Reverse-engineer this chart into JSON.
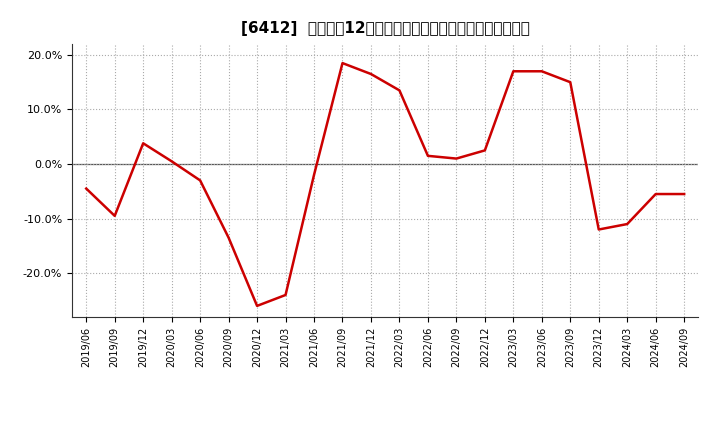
{
  "title": "[6412]  売上高の12か月移動合計の対前年同期増減率の推移",
  "line_color": "#cc0000",
  "background_color": "#ffffff",
  "grid_color": "#aaaaaa",
  "x_labels": [
    "2019/06",
    "2019/09",
    "2019/12",
    "2020/03",
    "2020/06",
    "2020/09",
    "2020/12",
    "2021/03",
    "2021/06",
    "2021/09",
    "2021/12",
    "2022/03",
    "2022/06",
    "2022/09",
    "2022/12",
    "2023/03",
    "2023/06",
    "2023/09",
    "2023/12",
    "2024/03",
    "2024/06",
    "2024/09"
  ],
  "y_data": [
    -0.045,
    -0.095,
    0.038,
    0.005,
    -0.03,
    -0.135,
    -0.26,
    -0.24,
    -0.02,
    0.185,
    0.165,
    0.135,
    0.015,
    0.01,
    0.025,
    0.17,
    0.17,
    0.15,
    -0.12,
    -0.11,
    -0.055,
    -0.055
  ],
  "ylim": [
    -0.28,
    0.22
  ],
  "yticks": [
    -0.2,
    -0.1,
    0.0,
    0.1,
    0.2
  ],
  "ytick_labels": [
    "-20.0%",
    "-10.0%",
    "0.0%",
    "10.0%",
    "20.0%"
  ],
  "title_fontsize": 11,
  "tick_fontsize": 8,
  "xtick_fontsize": 7,
  "linewidth": 1.8
}
